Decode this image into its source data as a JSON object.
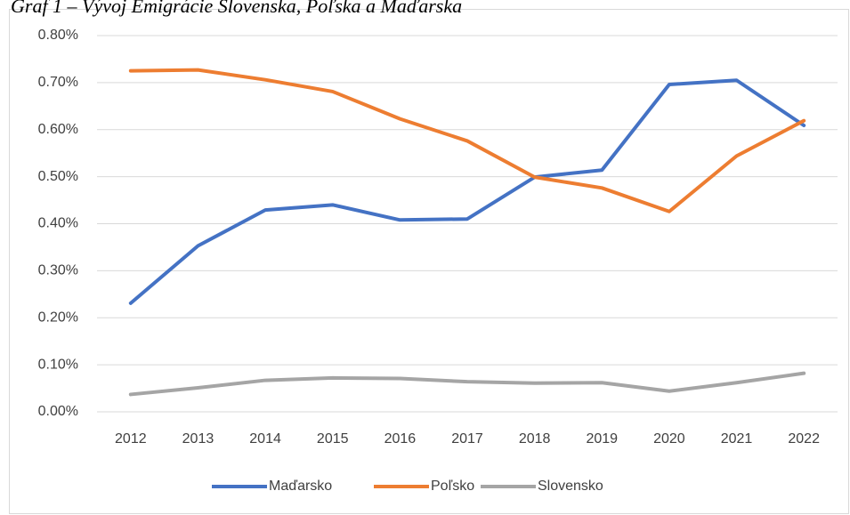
{
  "chart_data": {
    "type": "line",
    "title": "Graf 1 – Vývoj Emigrácie Slovenska, Poľska a Maďarska",
    "categories": [
      "2012",
      "2013",
      "2014",
      "2015",
      "2016",
      "2017",
      "2018",
      "2019",
      "2020",
      "2021",
      "2022"
    ],
    "series": [
      {
        "name": "Maďarsko",
        "color": "#4472c4",
        "values": [
          0.231,
          0.353,
          0.429,
          0.44,
          0.408,
          0.41,
          0.499,
          0.514,
          0.696,
          0.705,
          0.609
        ]
      },
      {
        "name": "Poľsko",
        "color": "#ed7d31",
        "values": [
          0.725,
          0.727,
          0.706,
          0.681,
          0.623,
          0.576,
          0.499,
          0.476,
          0.426,
          0.544,
          0.619
        ]
      },
      {
        "name": "Slovensko",
        "color": "#a5a5a5",
        "values": [
          0.037,
          0.051,
          0.067,
          0.072,
          0.071,
          0.064,
          0.061,
          0.062,
          0.044,
          0.062,
          0.082
        ]
      }
    ],
    "ylim": [
      0,
      0.8
    ],
    "yticks": [
      {
        "value": 0,
        "label": "0.00%"
      },
      {
        "value": 0.1,
        "label": "0.10%"
      },
      {
        "value": 0.2,
        "label": "0.20%"
      },
      {
        "value": 0.3,
        "label": "0.30%"
      },
      {
        "value": 0.4,
        "label": "0.40%"
      },
      {
        "value": 0.5,
        "label": "0.50%"
      },
      {
        "value": 0.6,
        "label": "0.60%"
      },
      {
        "value": 0.7,
        "label": "0.70%"
      },
      {
        "value": 0.8,
        "label": "0.80%"
      }
    ],
    "grid": true,
    "legend": "bottom"
  }
}
